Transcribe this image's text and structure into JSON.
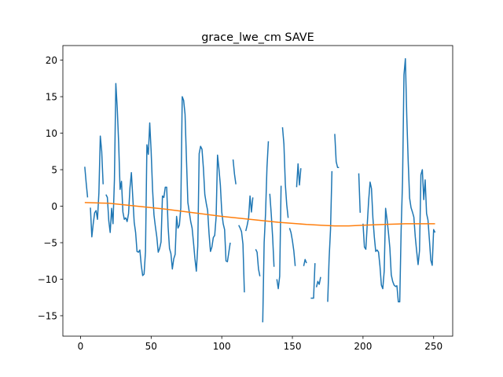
{
  "chart_data": {
    "type": "line",
    "title": "grace_lwe_cm SAVE",
    "xlabel": "",
    "ylabel": "",
    "xlim": [
      -12.5,
      263.5
    ],
    "ylim": [
      -17.8,
      22.0
    ],
    "grid": false,
    "xticks": [
      0,
      50,
      100,
      150,
      200,
      250
    ],
    "yticks": [
      -15,
      -10,
      -5,
      0,
      5,
      10,
      15,
      20
    ],
    "colors": {
      "series_observed": "#1f77b4",
      "series_trend": "#ff7f0e"
    },
    "series": [
      {
        "segments": [
          [
            [
              3,
              5.4
            ],
            [
              4,
              3.2
            ],
            [
              5,
              1.2
            ]
          ],
          [
            [
              7,
              -0.2
            ],
            [
              8,
              -4.2
            ],
            [
              9,
              -2.4
            ],
            [
              10,
              -0.9
            ],
            [
              11,
              -0.6
            ],
            [
              12,
              -1.8
            ],
            [
              13,
              1.8
            ],
            [
              14,
              9.6
            ],
            [
              15,
              7.5
            ],
            [
              16,
              3.0
            ]
          ],
          [
            [
              18,
              1.6
            ],
            [
              19,
              1.2
            ],
            [
              20,
              -2.0
            ],
            [
              21,
              -3.6
            ],
            [
              22,
              -0.3
            ],
            [
              23,
              -2.4
            ],
            [
              24,
              3.6
            ],
            [
              25,
              16.8
            ],
            [
              26,
              13.4
            ],
            [
              27,
              8.6
            ],
            [
              28,
              2.3
            ],
            [
              29,
              3.4
            ],
            [
              30,
              -0.8
            ],
            [
              31,
              -1.8
            ],
            [
              32,
              -1.6
            ],
            [
              33,
              -2.1
            ],
            [
              34,
              -1.0
            ],
            [
              35,
              2.5
            ],
            [
              36,
              4.6
            ],
            [
              37,
              1.2
            ],
            [
              38,
              -2.2
            ],
            [
              39,
              -3.6
            ],
            [
              40,
              -6.2
            ],
            [
              41,
              -6.3
            ],
            [
              42,
              -6.0
            ],
            [
              43,
              -8.1
            ],
            [
              44,
              -9.5
            ],
            [
              45,
              -9.3
            ],
            [
              46,
              -6.2
            ],
            [
              47,
              8.4
            ],
            [
              48,
              7.1
            ],
            [
              49,
              11.4
            ],
            [
              50,
              7.5
            ],
            [
              51,
              2.3
            ],
            [
              52,
              -1.2
            ],
            [
              53,
              -2.8
            ],
            [
              54,
              -4.2
            ],
            [
              55,
              -6.3
            ],
            [
              56,
              -5.8
            ],
            [
              57,
              -4.9
            ],
            [
              58,
              1.4
            ],
            [
              59,
              1.2
            ],
            [
              60,
              2.6
            ],
            [
              61,
              2.6
            ],
            [
              62,
              -2.8
            ],
            [
              63,
              -5.8
            ],
            [
              64,
              -6.5
            ],
            [
              65,
              -8.6
            ],
            [
              66,
              -7.2
            ],
            [
              67,
              -6.6
            ],
            [
              68,
              -1.4
            ],
            [
              69,
              -3.0
            ],
            [
              70,
              -2.6
            ],
            [
              71,
              -0.2
            ],
            [
              72,
              15.0
            ],
            [
              73,
              14.5
            ],
            [
              74,
              12.6
            ],
            [
              75,
              6.4
            ],
            [
              76,
              0.5
            ],
            [
              77,
              -0.8
            ],
            [
              78,
              -2.1
            ],
            [
              79,
              -3.0
            ],
            [
              80,
              -5.0
            ],
            [
              81,
              -7.2
            ],
            [
              82,
              -8.9
            ],
            [
              83,
              -5.5
            ],
            [
              84,
              7.2
            ],
            [
              85,
              8.2
            ],
            [
              86,
              7.8
            ],
            [
              87,
              5.2
            ],
            [
              88,
              1.6
            ],
            [
              89,
              0.4
            ],
            [
              90,
              -0.6
            ],
            [
              91,
              -3.8
            ],
            [
              92,
              -6.2
            ],
            [
              93,
              -5.6
            ],
            [
              94,
              -4.3
            ],
            [
              95,
              -4.0
            ],
            [
              96,
              -1.5
            ],
            [
              97,
              7.0
            ],
            [
              98,
              5.1
            ],
            [
              99,
              2.9
            ],
            [
              100,
              -0.8
            ],
            [
              101,
              -2.4
            ],
            [
              102,
              -3.2
            ],
            [
              103,
              -7.5
            ],
            [
              104,
              -7.6
            ],
            [
              105,
              -6.3
            ],
            [
              106,
              -5.0
            ]
          ],
          [
            [
              108,
              6.4
            ],
            [
              109,
              4.4
            ],
            [
              110,
              3.0
            ]
          ],
          [
            [
              112,
              -2.6
            ],
            [
              113,
              -3.0
            ],
            [
              114,
              -3.5
            ],
            [
              115,
              -5.2
            ],
            [
              116,
              -11.8
            ]
          ],
          [
            [
              117,
              -3.4
            ],
            [
              118,
              -2.6
            ],
            [
              119,
              -1.6
            ],
            [
              120,
              1.4
            ],
            [
              121,
              -0.8
            ],
            [
              122,
              1.2
            ]
          ],
          [
            [
              124,
              -5.9
            ],
            [
              125,
              -6.3
            ],
            [
              126,
              -8.6
            ],
            [
              127,
              -9.6
            ]
          ],
          [
            [
              129,
              -15.9
            ],
            [
              130,
              -5.0
            ],
            [
              131,
              -1.0
            ],
            [
              132,
              5.3
            ],
            [
              133,
              8.9
            ]
          ],
          [
            [
              134,
              1.7
            ],
            [
              135,
              -1.0
            ],
            [
              136,
              -4.2
            ],
            [
              137,
              -8.3
            ]
          ],
          [
            [
              139,
              -10.0
            ],
            [
              140,
              -11.3
            ],
            [
              141,
              -9.6
            ],
            [
              142,
              2.8
            ]
          ],
          [
            [
              143,
              10.8
            ],
            [
              144,
              8.5
            ],
            [
              145,
              3.0
            ],
            [
              146,
              0.2
            ],
            [
              147,
              -1.6
            ]
          ],
          [
            [
              148,
              -3.0
            ],
            [
              149,
              -3.6
            ],
            [
              150,
              -4.7
            ],
            [
              151,
              -6.1
            ],
            [
              152,
              -8.2
            ]
          ],
          [
            [
              153,
              2.6
            ],
            [
              154,
              5.8
            ],
            [
              155,
              2.9
            ],
            [
              156,
              5.2
            ]
          ],
          [
            [
              158,
              -8.2
            ],
            [
              159,
              -7.3
            ],
            [
              160,
              -7.8
            ]
          ],
          [
            [
              163,
              -12.6
            ],
            [
              164,
              -12.6
            ],
            [
              165,
              -12.6
            ],
            [
              166,
              -7.8
            ]
          ],
          [
            [
              167,
              -11.1
            ],
            [
              168,
              -10.3
            ],
            [
              169,
              -10.7
            ],
            [
              170,
              -9.7
            ]
          ],
          [
            [
              175,
              -13.1
            ],
            [
              176,
              -7.2
            ],
            [
              177,
              -3.2
            ],
            [
              178,
              4.8
            ]
          ],
          [
            [
              180,
              9.9
            ],
            [
              181,
              6.1
            ],
            [
              182,
              5.3
            ],
            [
              183,
              5.3
            ]
          ],
          [
            [
              197,
              4.5
            ],
            [
              198,
              -0.9
            ]
          ],
          [
            [
              200,
              -2.4
            ],
            [
              201,
              -5.6
            ],
            [
              202,
              -5.9
            ],
            [
              203,
              -2.5
            ],
            [
              204,
              0.8
            ],
            [
              205,
              3.3
            ],
            [
              206,
              2.4
            ],
            [
              207,
              -1.6
            ],
            [
              208,
              -4.2
            ],
            [
              209,
              -6.2
            ],
            [
              210,
              -6.0
            ],
            [
              211,
              -6.3
            ],
            [
              212,
              -8.2
            ],
            [
              213,
              -10.8
            ],
            [
              214,
              -11.3
            ],
            [
              215,
              -8.9
            ],
            [
              216,
              -0.3
            ],
            [
              217,
              -1.8
            ],
            [
              218,
              -3.6
            ],
            [
              219,
              -5.7
            ],
            [
              220,
              -9.4
            ],
            [
              221,
              -10.3
            ],
            [
              222,
              -10.8
            ],
            [
              223,
              -11.0
            ],
            [
              224,
              -10.9
            ],
            [
              225,
              -13.1
            ],
            [
              226,
              -13.1
            ],
            [
              227,
              -3.2
            ],
            [
              228,
              3.5
            ],
            [
              229,
              18.0
            ],
            [
              230,
              20.2
            ],
            [
              231,
              12.2
            ],
            [
              232,
              6.1
            ],
            [
              233,
              1.1
            ],
            [
              234,
              -0.2
            ],
            [
              235,
              -0.8
            ],
            [
              236,
              -1.5
            ],
            [
              237,
              -4.2
            ],
            [
              238,
              -6.2
            ],
            [
              239,
              -8.0
            ],
            [
              240,
              -6.1
            ],
            [
              241,
              4.3
            ],
            [
              242,
              5.0
            ],
            [
              243,
              0.9
            ],
            [
              244,
              3.6
            ],
            [
              245,
              -1.0
            ],
            [
              246,
              -1.9
            ],
            [
              247,
              -4.6
            ],
            [
              248,
              -7.4
            ],
            [
              249,
              -8.1
            ],
            [
              250,
              -3.2
            ],
            [
              251,
              -3.6
            ]
          ]
        ]
      },
      {
        "x": [
          3,
          20,
          40,
          60,
          80,
          100,
          120,
          140,
          160,
          170,
          180,
          190,
          200,
          215,
          230,
          251
        ],
        "values": [
          0.5,
          0.4,
          0.0,
          -0.4,
          -0.9,
          -1.4,
          -1.8,
          -2.2,
          -2.5,
          -2.6,
          -2.7,
          -2.7,
          -2.6,
          -2.5,
          -2.4,
          -2.4
        ]
      }
    ]
  }
}
